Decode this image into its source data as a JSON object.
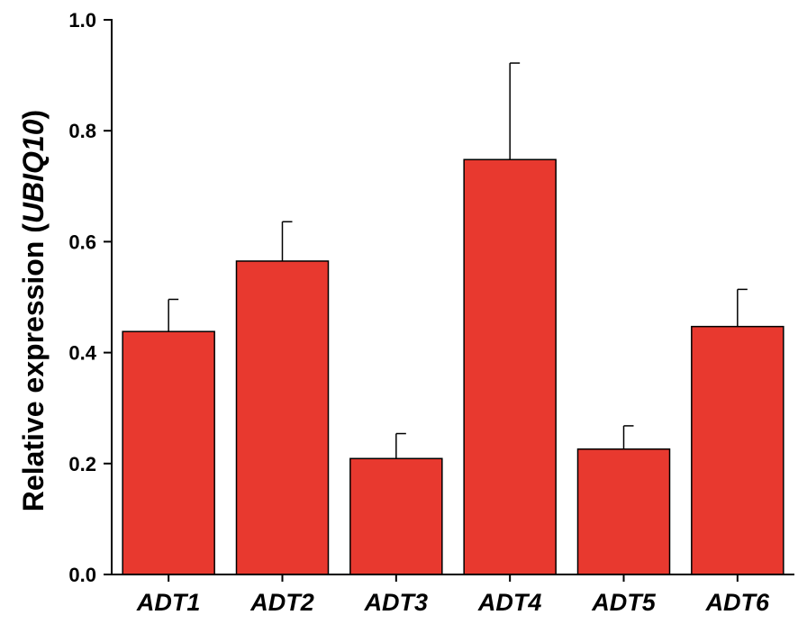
{
  "chart_data": {
    "type": "bar",
    "categories": [
      "ADT1",
      "ADT2",
      "ADT3",
      "ADT4",
      "ADT5",
      "ADT6"
    ],
    "values": [
      0.438,
      0.565,
      0.209,
      0.748,
      0.226,
      0.447
    ],
    "errors": [
      0.058,
      0.071,
      0.045,
      0.174,
      0.042,
      0.067
    ],
    "title": "",
    "xlabel": "",
    "ylabel": {
      "prefix": "Relative expression (",
      "gene": "UBIQ10",
      "suffix": ")"
    },
    "ylim": [
      0,
      1.0
    ],
    "yticks": [
      "0.0",
      "0.2",
      "0.4",
      "0.6",
      "0.8",
      "1.0"
    ],
    "grid": false,
    "legend": "none",
    "colors": {
      "bar_fill": "#e8392f",
      "bar_stroke": "#000000",
      "axis": "#000000"
    }
  }
}
